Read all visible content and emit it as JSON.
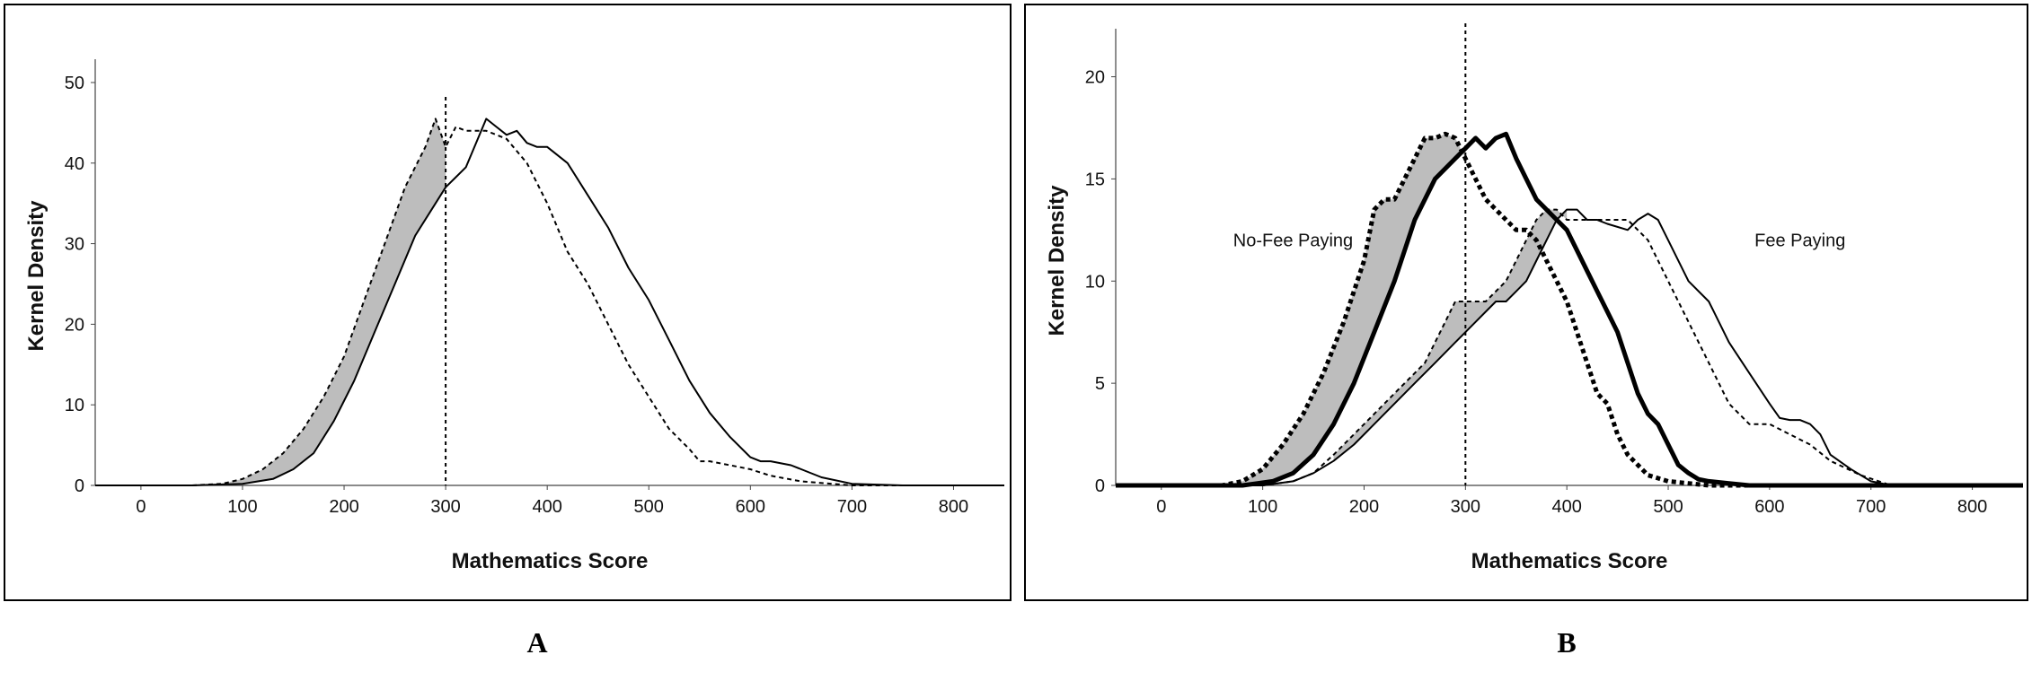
{
  "labels": {
    "a": "A",
    "b": "B"
  },
  "colors": {
    "fill": "#bdbdbd",
    "line": "#000000"
  },
  "chart_data": [
    {
      "id": "A",
      "type": "line",
      "xlabel": "Mathematics Score",
      "ylabel": "Kernel Density",
      "xlim": [
        -45,
        850
      ],
      "ylim": [
        0,
        52
      ],
      "xticks": [
        0,
        100,
        200,
        300,
        400,
        500,
        600,
        700,
        800
      ],
      "yticks": [
        0,
        10,
        20,
        30,
        40,
        50
      ],
      "threshold_line": {
        "x": 300,
        "style": "dotted"
      },
      "annotations": [],
      "shaded_regions": [
        {
          "between": [
            "dashed",
            "solid"
          ],
          "x_range": [
            60,
            300
          ],
          "color": "#bdbdbd"
        }
      ],
      "series": [
        {
          "style": "solid",
          "weight": "normal",
          "x": [
            -45,
            0,
            50,
            100,
            130,
            150,
            170,
            190,
            210,
            230,
            250,
            270,
            290,
            300,
            320,
            340,
            350,
            360,
            370,
            380,
            390,
            400,
            410,
            420,
            440,
            460,
            480,
            500,
            520,
            540,
            560,
            580,
            600,
            610,
            620,
            640,
            650,
            670,
            700,
            750,
            850
          ],
          "y": [
            0,
            0,
            0,
            0.2,
            0.8,
            2,
            4,
            8,
            13,
            19,
            25,
            31,
            35,
            37,
            39.5,
            45.5,
            44.5,
            43.5,
            44,
            42.5,
            42,
            42,
            41,
            40,
            36,
            32,
            27,
            23,
            18,
            13,
            9,
            6,
            3.5,
            3,
            3,
            2.5,
            2,
            1,
            0.2,
            0,
            0
          ]
        },
        {
          "style": "dashed",
          "weight": "normal",
          "x": [
            -45,
            0,
            50,
            80,
            100,
            120,
            140,
            160,
            180,
            200,
            220,
            240,
            260,
            280,
            290,
            300,
            310,
            320,
            340,
            360,
            380,
            400,
            420,
            440,
            460,
            480,
            500,
            520,
            540,
            550,
            560,
            580,
            600,
            620,
            650,
            700,
            850
          ],
          "y": [
            0,
            0,
            0,
            0.2,
            0.8,
            2,
            4,
            7,
            11,
            16,
            23,
            30,
            37,
            42,
            45.5,
            42,
            44.5,
            44,
            44,
            43,
            40,
            35,
            29,
            25,
            20,
            15,
            11,
            7,
            4.5,
            3,
            3,
            2.5,
            2,
            1.2,
            0.5,
            0,
            0
          ]
        }
      ]
    },
    {
      "id": "B",
      "type": "line",
      "xlabel": "Mathematics Score",
      "ylabel": "Kernel Density",
      "xlim": [
        -45,
        850
      ],
      "ylim": [
        0,
        22
      ],
      "xticks": [
        0,
        100,
        200,
        300,
        400,
        500,
        600,
        700,
        800
      ],
      "yticks": [
        0,
        5,
        10,
        15,
        20
      ],
      "threshold_line": {
        "x": 300,
        "style": "dotted"
      },
      "annotations": [
        {
          "text": "No-Fee Paying",
          "x": 130,
          "y": 12
        },
        {
          "text": "Fee Paying",
          "x": 630,
          "y": 12
        }
      ],
      "shaded_regions": [
        {
          "between": [
            "no-fee dashed",
            "no-fee solid"
          ],
          "x_range": [
            60,
            300
          ],
          "color": "#bdbdbd"
        },
        {
          "between": [
            "fee dashed",
            "fee solid"
          ],
          "x_range": [
            170,
            400
          ],
          "color": "#bdbdbd"
        }
      ],
      "series": [
        {
          "style": "solid",
          "weight": "bold",
          "x": [
            -45,
            0,
            80,
            110,
            130,
            150,
            170,
            190,
            210,
            230,
            250,
            270,
            290,
            300,
            310,
            320,
            330,
            340,
            350,
            360,
            370,
            380,
            390,
            400,
            410,
            420,
            430,
            440,
            450,
            460,
            470,
            480,
            490,
            500,
            510,
            520,
            530,
            540,
            560,
            580,
            600,
            850
          ],
          "y": [
            0,
            0,
            0,
            0.2,
            0.6,
            1.5,
            3,
            5,
            7.5,
            10,
            13,
            15,
            16,
            16.5,
            17,
            16.5,
            17,
            17.2,
            16,
            15,
            14,
            13.5,
            13,
            12.5,
            11.5,
            10.5,
            9.5,
            8.5,
            7.5,
            6,
            4.5,
            3.5,
            3,
            2,
            1,
            0.6,
            0.3,
            0.2,
            0.1,
            0,
            0,
            0
          ]
        },
        {
          "style": "dashed",
          "weight": "bold",
          "x": [
            -45,
            0,
            60,
            80,
            100,
            120,
            140,
            160,
            180,
            200,
            210,
            220,
            230,
            240,
            250,
            260,
            270,
            280,
            290,
            300,
            310,
            320,
            330,
            340,
            350,
            360,
            370,
            380,
            400,
            420,
            430,
            440,
            450,
            460,
            480,
            500,
            520,
            540,
            560,
            850
          ],
          "y": [
            0,
            0,
            0,
            0.2,
            0.8,
            2,
            3.5,
            5.5,
            8,
            11,
            13.5,
            14,
            14,
            15,
            16,
            17,
            17,
            17.2,
            17,
            16,
            15,
            14,
            13.5,
            13,
            12.5,
            12.5,
            12,
            11,
            9,
            6,
            4.5,
            4,
            2.5,
            1.5,
            0.5,
            0.2,
            0.1,
            0,
            0,
            0
          ]
        },
        {
          "style": "solid",
          "weight": "normal",
          "x": [
            -45,
            0,
            100,
            130,
            150,
            170,
            190,
            210,
            230,
            250,
            270,
            290,
            310,
            330,
            340,
            350,
            360,
            370,
            380,
            390,
            400,
            410,
            420,
            430,
            440,
            460,
            470,
            480,
            490,
            500,
            520,
            540,
            560,
            580,
            600,
            610,
            620,
            630,
            640,
            650,
            660,
            680,
            700,
            720,
            850
          ],
          "y": [
            0,
            0,
            0,
            0.2,
            0.6,
            1.2,
            2,
            3,
            4,
            5,
            6,
            7,
            8,
            9,
            9,
            9.5,
            10,
            11,
            12,
            13,
            13.5,
            13.5,
            13,
            13,
            12.8,
            12.5,
            13,
            13.3,
            13,
            12,
            10,
            9,
            7,
            5.5,
            4,
            3.3,
            3.2,
            3.2,
            3,
            2.5,
            1.5,
            0.8,
            0.2,
            0,
            0
          ]
        },
        {
          "style": "dashed",
          "weight": "normal",
          "x": [
            -45,
            0,
            100,
            130,
            150,
            170,
            190,
            210,
            230,
            250,
            260,
            270,
            280,
            290,
            300,
            310,
            320,
            330,
            340,
            350,
            360,
            370,
            380,
            390,
            400,
            410,
            420,
            430,
            440,
            460,
            480,
            500,
            520,
            540,
            560,
            580,
            600,
            620,
            640,
            660,
            690,
            720,
            850
          ],
          "y": [
            0,
            0,
            0,
            0.2,
            0.6,
            1.5,
            2.5,
            3.5,
            4.5,
            5.5,
            6,
            7,
            8,
            9,
            9,
            9,
            9,
            9.5,
            10,
            11,
            12,
            13,
            13.5,
            13.5,
            13,
            13,
            13,
            13,
            13,
            13,
            12,
            10,
            8,
            6,
            4,
            3,
            3,
            2.5,
            2,
            1.2,
            0.5,
            0,
            0
          ]
        }
      ]
    }
  ]
}
